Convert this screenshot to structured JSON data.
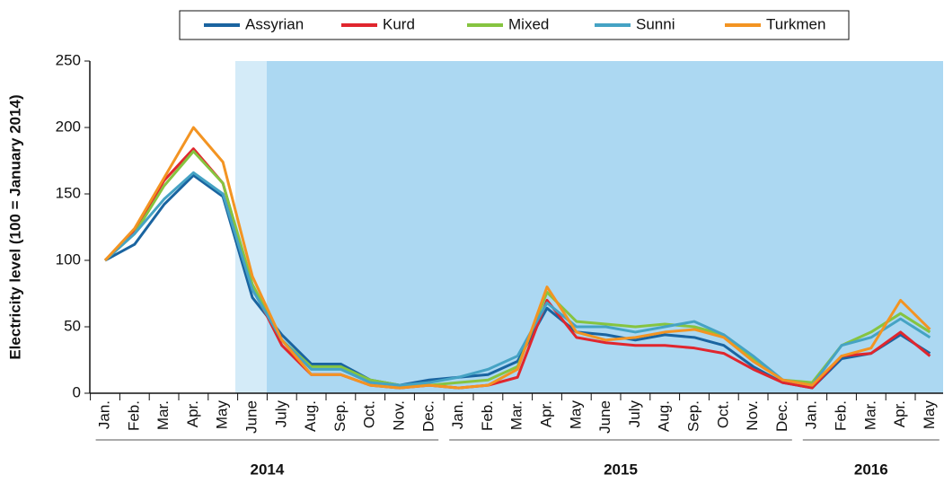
{
  "chart_data": {
    "type": "line",
    "y_label": "Electricity level (100 = January 2014)",
    "categories": [
      "Jan.",
      "Feb.",
      "Mar.",
      "Apr.",
      "May",
      "June",
      "July",
      "Aug.",
      "Sep.",
      "Oct.",
      "Nov.",
      "Dec.",
      "Jan.",
      "Feb.",
      "Mar.",
      "Apr.",
      "May",
      "June",
      "July",
      "Aug.",
      "Sep.",
      "Oct.",
      "Nov.",
      "Dec.",
      "Jan.",
      "Feb.",
      "Mar.",
      "Apr.",
      "May"
    ],
    "year_labels": [
      "2014",
      "2015",
      "2016"
    ],
    "ylim": [
      0,
      250
    ],
    "yticks": [
      0,
      50,
      100,
      150,
      200,
      250
    ],
    "series": [
      {
        "name": "Assyrian",
        "color": "#1a64a0",
        "values": [
          100,
          112,
          142,
          164,
          148,
          72,
          44,
          22,
          22,
          10,
          6,
          10,
          12,
          14,
          24,
          64,
          46,
          44,
          40,
          44,
          42,
          36,
          20,
          8,
          4,
          26,
          30,
          44,
          30
        ]
      },
      {
        "name": "Kurd",
        "color": "#e0262e",
        "values": [
          100,
          122,
          160,
          184,
          158,
          80,
          36,
          14,
          14,
          6,
          4,
          6,
          4,
          6,
          12,
          70,
          42,
          38,
          36,
          36,
          34,
          30,
          18,
          8,
          4,
          28,
          30,
          46,
          28
        ]
      },
      {
        "name": "Mixed",
        "color": "#86c440",
        "values": [
          100,
          120,
          156,
          182,
          158,
          82,
          40,
          20,
          20,
          10,
          6,
          6,
          8,
          10,
          20,
          76,
          54,
          52,
          50,
          52,
          50,
          44,
          26,
          10,
          8,
          36,
          46,
          60,
          46
        ]
      },
      {
        "name": "Sunni",
        "color": "#45a3c4",
        "values": [
          100,
          120,
          146,
          166,
          150,
          78,
          40,
          18,
          18,
          8,
          6,
          8,
          12,
          18,
          28,
          68,
          50,
          50,
          46,
          50,
          54,
          44,
          28,
          10,
          6,
          36,
          42,
          56,
          42
        ]
      },
      {
        "name": "Turkmen",
        "color": "#f39422",
        "values": [
          100,
          124,
          162,
          200,
          174,
          88,
          40,
          14,
          14,
          6,
          4,
          6,
          4,
          6,
          18,
          80,
          46,
          40,
          42,
          46,
          48,
          42,
          24,
          10,
          6,
          28,
          34,
          70,
          48
        ]
      }
    ]
  }
}
